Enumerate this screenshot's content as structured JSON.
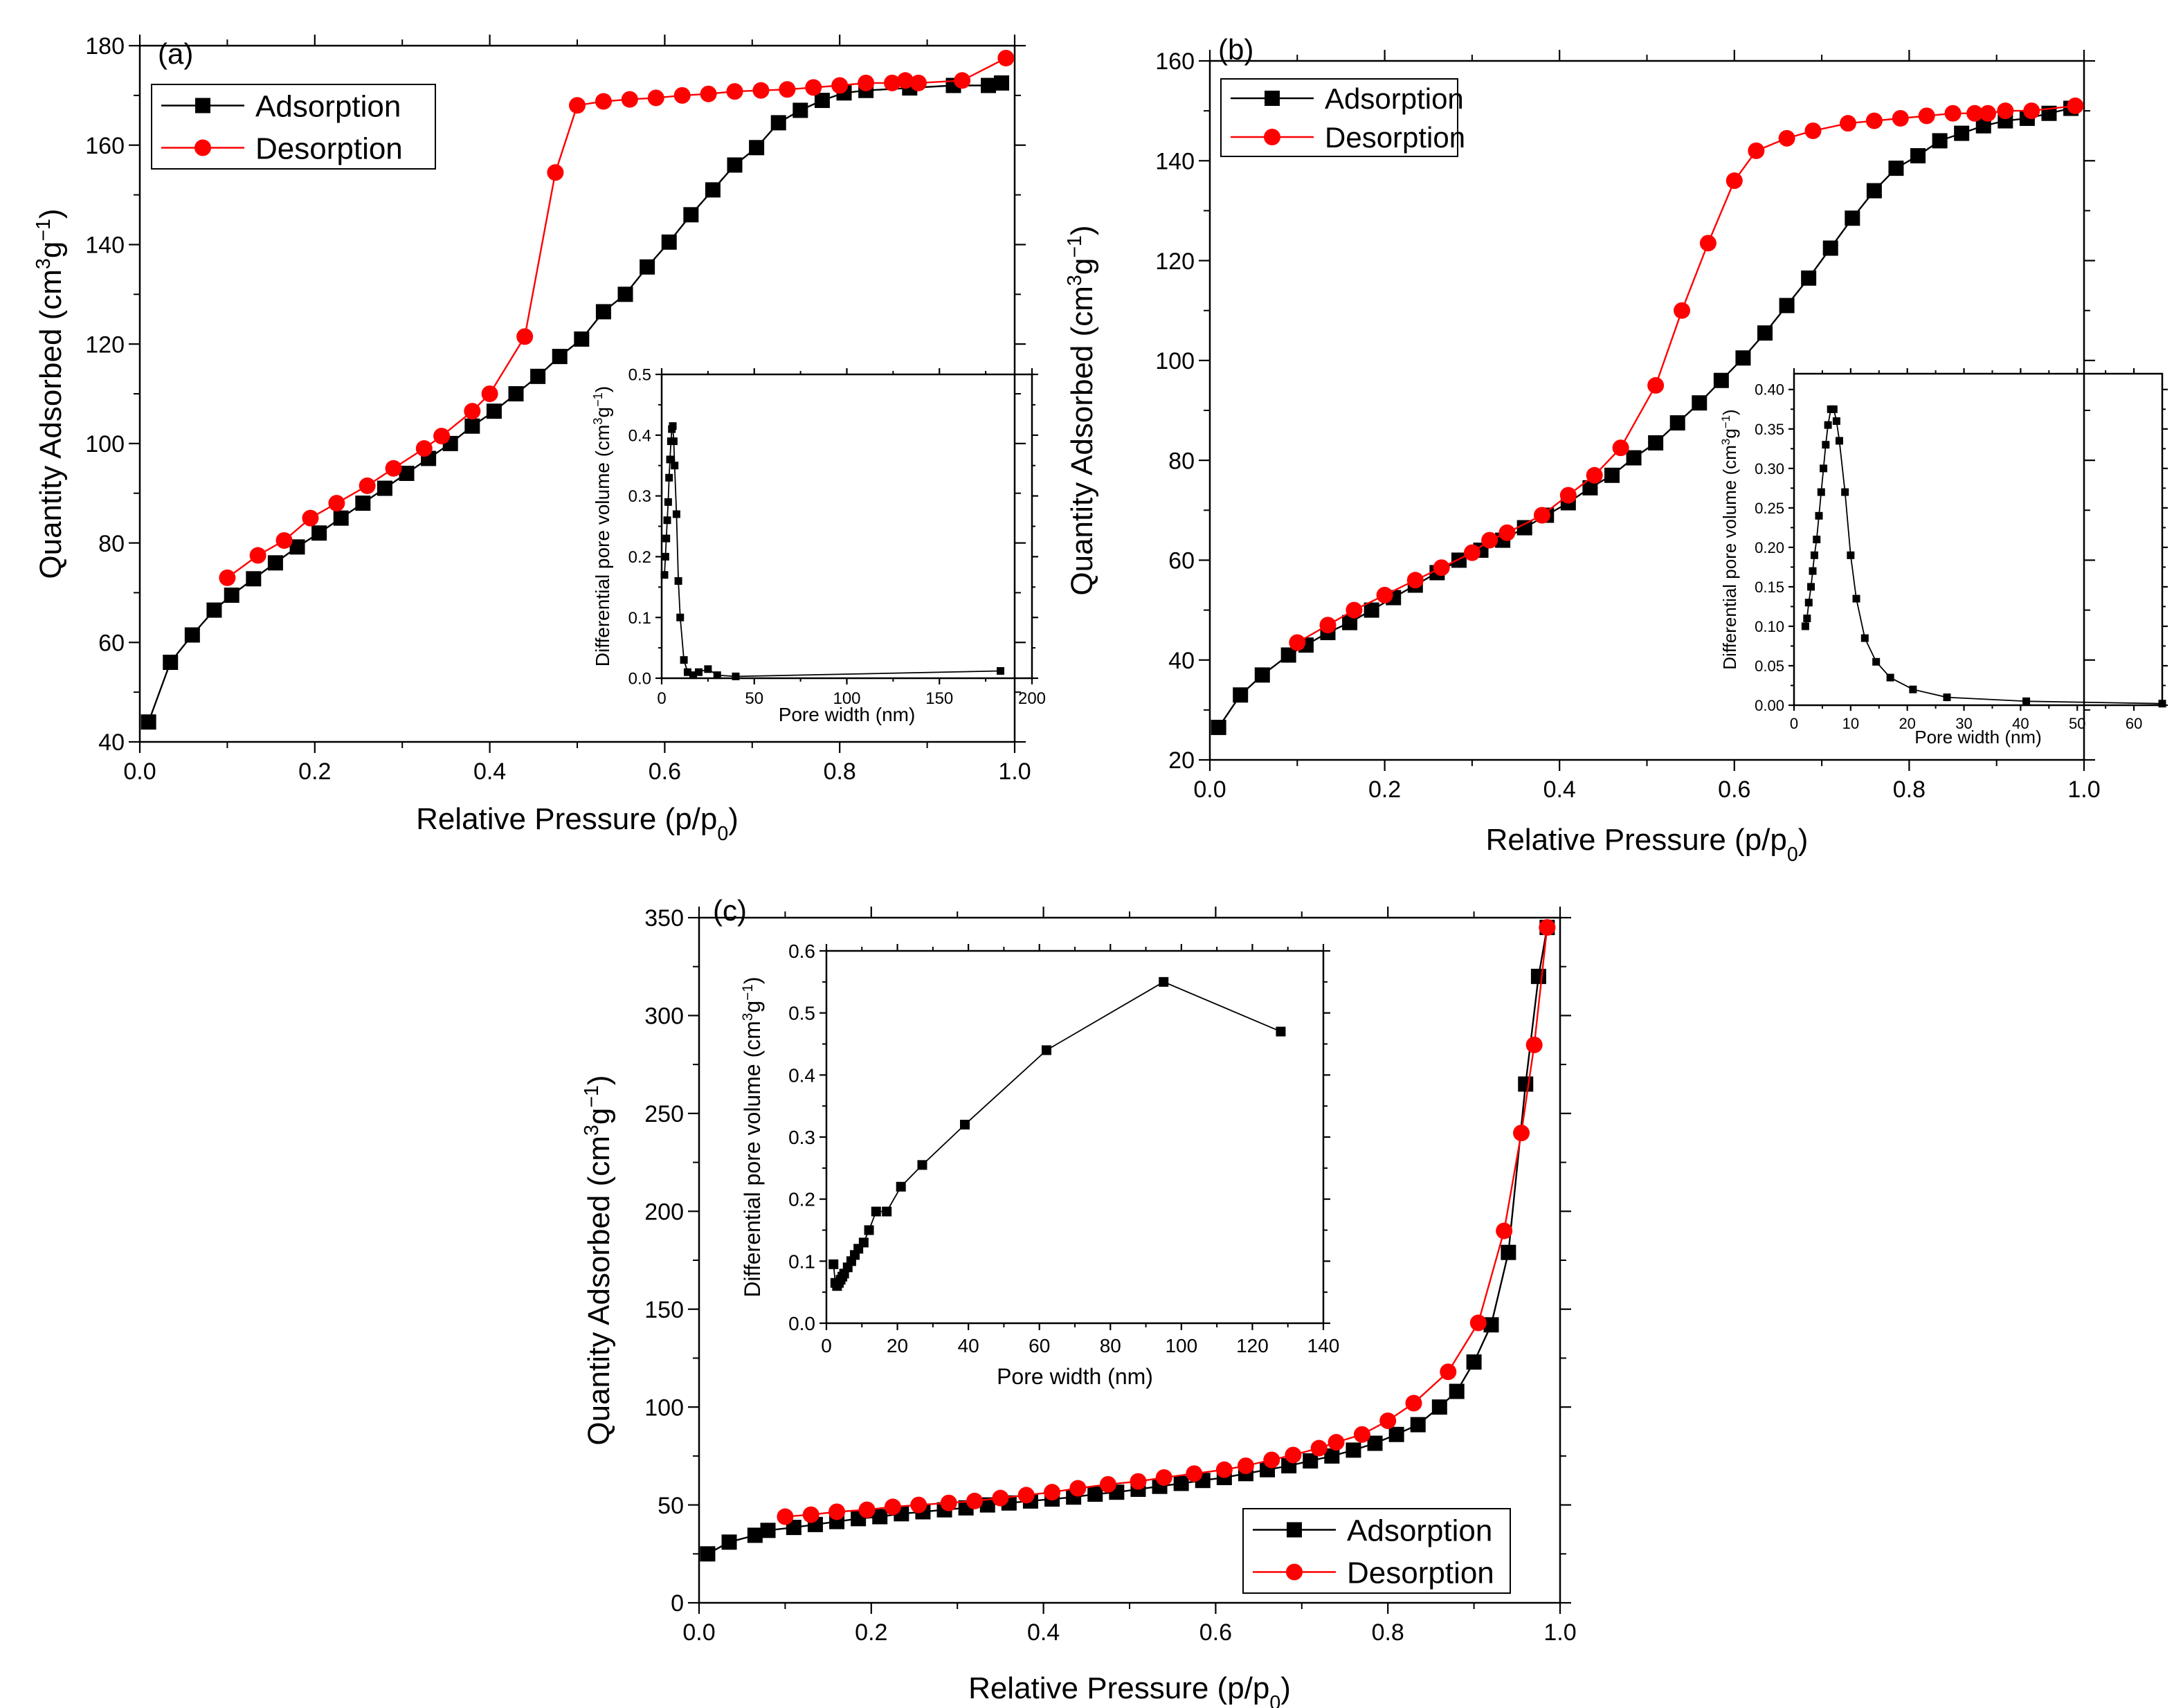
{
  "figure": {
    "panels": [
      {
        "label": "(a)"
      },
      {
        "label": "(b)"
      },
      {
        "label": "(c)"
      }
    ]
  },
  "chart_data": [
    {
      "panel": "(a)",
      "type": "line",
      "role": "main",
      "xlabel": "Relative Pressure (p/p",
      "xlabel_sub": "0",
      "xlabel_tail": ")",
      "ylabel": "Quantity Adsorbed (cm",
      "ylabel_sup1": "3",
      "ylabel_mid": "g",
      "ylabel_sup2": "−1",
      "ylabel_tail": ")",
      "xlim": [
        0,
        1.0
      ],
      "ylim": [
        40,
        180
      ],
      "xticks": [
        0.0,
        0.2,
        0.4,
        0.6,
        0.8,
        1.0
      ],
      "xtick_labels": [
        "0.0",
        "0.2",
        "0.4",
        "0.6",
        "0.8",
        "1.0"
      ],
      "yticks": [
        40,
        60,
        80,
        100,
        120,
        140,
        160,
        180
      ],
      "ytick_labels": [
        "40",
        "60",
        "80",
        "100",
        "120",
        "140",
        "160",
        "180"
      ],
      "legend": {
        "position": "top-left",
        "entries": [
          "Adsorption",
          "Desorption"
        ]
      },
      "series": [
        {
          "name": "Adsorption",
          "color": "#000000",
          "marker": "square",
          "x": [
            0.01,
            0.035,
            0.06,
            0.085,
            0.105,
            0.13,
            0.155,
            0.18,
            0.205,
            0.23,
            0.255,
            0.28,
            0.305,
            0.33,
            0.355,
            0.38,
            0.405,
            0.43,
            0.455,
            0.48,
            0.505,
            0.53,
            0.555,
            0.58,
            0.605,
            0.63,
            0.655,
            0.68,
            0.705,
            0.73,
            0.755,
            0.78,
            0.805,
            0.83,
            0.88,
            0.93,
            0.97,
            0.985
          ],
          "y": [
            44,
            56,
            61.5,
            66.5,
            69.5,
            72.8,
            76,
            79.2,
            82,
            85,
            88,
            91,
            94,
            97,
            100,
            103.5,
            106.5,
            110,
            113.5,
            117.5,
            121,
            126.5,
            130,
            135.5,
            140.5,
            146,
            151,
            156,
            159.5,
            164.5,
            167,
            169,
            170.5,
            171,
            171.5,
            172,
            172,
            172.5
          ]
        },
        {
          "name": "Desorption",
          "color": "#ff0000",
          "marker": "circle",
          "x": [
            0.1,
            0.135,
            0.165,
            0.195,
            0.225,
            0.26,
            0.29,
            0.325,
            0.345,
            0.38,
            0.4,
            0.44,
            0.475,
            0.5,
            0.53,
            0.56,
            0.59,
            0.62,
            0.65,
            0.68,
            0.71,
            0.74,
            0.77,
            0.8,
            0.83,
            0.86,
            0.875,
            0.89,
            0.94,
            0.99
          ],
          "y": [
            73,
            77.5,
            80.5,
            85,
            88,
            91.5,
            95,
            99,
            101.5,
            106.5,
            110,
            121.5,
            154.5,
            168,
            168.8,
            169.2,
            169.5,
            170,
            170.3,
            170.8,
            171,
            171.2,
            171.6,
            172,
            172.5,
            172.5,
            173,
            172.5,
            173,
            177.5
          ]
        }
      ]
    },
    {
      "panel": "(a)",
      "type": "line",
      "role": "inset",
      "xlabel": "Pore width (nm)",
      "ylabel": "Differential pore volume (cm",
      "ylabel_sup1": "3",
      "ylabel_mid": "g",
      "ylabel_sup2": "−1",
      "ylabel_tail": ")",
      "xlim": [
        0,
        200
      ],
      "ylim": [
        0,
        0.5
      ],
      "xticks": [
        0,
        50,
        100,
        150,
        200
      ],
      "xtick_labels": [
        "0",
        "50",
        "100",
        "150",
        "200"
      ],
      "yticks": [
        0,
        0.1,
        0.2,
        0.3,
        0.4,
        0.5
      ],
      "ytick_labels": [
        "0.0",
        "0.1",
        "0.2",
        "0.3",
        "0.4",
        "0.5"
      ],
      "series": [
        {
          "name": "Pore size distribution",
          "color": "#000000",
          "marker": "square",
          "x": [
            1.5,
            2,
            2.5,
            3,
            3.5,
            4,
            4.5,
            5,
            5.5,
            6,
            6.5,
            7,
            8,
            9,
            10,
            12,
            14,
            17,
            20,
            25,
            30,
            40,
            183
          ],
          "y": [
            0.17,
            0.2,
            0.23,
            0.26,
            0.29,
            0.33,
            0.36,
            0.39,
            0.41,
            0.415,
            0.39,
            0.35,
            0.27,
            0.16,
            0.1,
            0.03,
            0.01,
            0.005,
            0.01,
            0.015,
            0.005,
            0.003,
            0.012
          ]
        }
      ]
    },
    {
      "panel": "(b)",
      "type": "line",
      "role": "main",
      "xlabel": "Relative Pressure (p/p",
      "xlabel_sub": "0",
      "xlabel_tail": ")",
      "ylabel": "Quantity Adsorbed (cm",
      "ylabel_sup1": "3",
      "ylabel_mid": "g",
      "ylabel_sup2": "−1",
      "ylabel_tail": ")",
      "xlim": [
        0,
        1.0
      ],
      "ylim": [
        20,
        160
      ],
      "xticks": [
        0.0,
        0.2,
        0.4,
        0.6,
        0.8,
        1.0
      ],
      "xtick_labels": [
        "0.0",
        "0.2",
        "0.4",
        "0.6",
        "0.8",
        "1.0"
      ],
      "yticks": [
        20,
        40,
        60,
        80,
        100,
        120,
        140,
        160
      ],
      "ytick_labels": [
        "20",
        "40",
        "60",
        "80",
        "100",
        "120",
        "140",
        "160"
      ],
      "legend": {
        "position": "top-left",
        "entries": [
          "Adsorption",
          "Desorption"
        ]
      },
      "series": [
        {
          "name": "Adsorption",
          "color": "#000000",
          "marker": "square",
          "x": [
            0.01,
            0.035,
            0.06,
            0.09,
            0.11,
            0.135,
            0.16,
            0.185,
            0.21,
            0.235,
            0.26,
            0.285,
            0.31,
            0.335,
            0.36,
            0.385,
            0.41,
            0.435,
            0.46,
            0.485,
            0.51,
            0.535,
            0.56,
            0.585,
            0.61,
            0.635,
            0.66,
            0.685,
            0.71,
            0.735,
            0.76,
            0.785,
            0.81,
            0.835,
            0.86,
            0.885,
            0.91,
            0.935,
            0.96,
            0.985
          ],
          "y": [
            26.5,
            33,
            37,
            41,
            43,
            45.5,
            47.5,
            50,
            52.5,
            55,
            57.5,
            60,
            62,
            64,
            66.5,
            69,
            71.5,
            74.5,
            77,
            80.5,
            83.5,
            87.5,
            91.5,
            96,
            100.5,
            105.5,
            111,
            116.5,
            122.5,
            128.5,
            134,
            138.5,
            141,
            144,
            145.5,
            147,
            148,
            148.5,
            149.5,
            150.5
          ]
        },
        {
          "name": "Desorption",
          "color": "#ff0000",
          "marker": "circle",
          "x": [
            0.1,
            0.135,
            0.165,
            0.2,
            0.235,
            0.265,
            0.3,
            0.32,
            0.34,
            0.38,
            0.41,
            0.44,
            0.47,
            0.51,
            0.54,
            0.57,
            0.6,
            0.625,
            0.66,
            0.69,
            0.73,
            0.76,
            0.79,
            0.82,
            0.85,
            0.875,
            0.89,
            0.91,
            0.94,
            0.99
          ],
          "y": [
            43.5,
            47,
            50,
            53,
            56,
            58.5,
            61.5,
            64,
            65.5,
            69,
            73,
            77,
            82.5,
            95,
            110,
            123.5,
            136,
            142,
            144.5,
            146,
            147.5,
            148,
            148.5,
            149,
            149.5,
            149.5,
            149.5,
            150,
            150,
            151
          ]
        }
      ]
    },
    {
      "panel": "(b)",
      "type": "line",
      "role": "inset",
      "xlabel": "Pore width (nm)",
      "ylabel": "Differential pore volume (cm",
      "ylabel_sup1": "3",
      "ylabel_mid": "g",
      "ylabel_sup2": "−1",
      "ylabel_tail": ")",
      "xlim": [
        0,
        65
      ],
      "ylim": [
        0,
        0.42
      ],
      "xticks": [
        0,
        10,
        20,
        30,
        40,
        50,
        60
      ],
      "xtick_labels": [
        "0",
        "10",
        "20",
        "30",
        "40",
        "50",
        "60"
      ],
      "yticks": [
        0,
        0.05,
        0.1,
        0.15,
        0.2,
        0.25,
        0.3,
        0.35,
        0.4
      ],
      "ytick_labels": [
        "0.00",
        "0.05",
        "0.10",
        "0.15",
        "0.20",
        "0.25",
        "0.30",
        "0.35",
        "0.40"
      ],
      "series": [
        {
          "name": "Pore size distribution",
          "color": "#000000",
          "marker": "square",
          "x": [
            2,
            2.3,
            2.6,
            3,
            3.3,
            3.6,
            4,
            4.4,
            4.8,
            5.2,
            5.6,
            6,
            6.5,
            7,
            7.5,
            8,
            9,
            10,
            11,
            12.5,
            14.5,
            17,
            21,
            27,
            41,
            65
          ],
          "y": [
            0.1,
            0.11,
            0.13,
            0.15,
            0.17,
            0.19,
            0.21,
            0.24,
            0.27,
            0.3,
            0.33,
            0.355,
            0.375,
            0.375,
            0.36,
            0.335,
            0.27,
            0.19,
            0.135,
            0.085,
            0.055,
            0.035,
            0.02,
            0.01,
            0.005,
            0.002
          ]
        }
      ]
    },
    {
      "panel": "(c)",
      "type": "line",
      "role": "main",
      "xlabel": "Relative Pressure (p/p",
      "xlabel_sub": "0",
      "xlabel_tail": ")",
      "ylabel": "Quantity Adsorbed (cm",
      "ylabel_sup1": "3",
      "ylabel_mid": "g",
      "ylabel_sup2": "−1",
      "ylabel_tail": ")",
      "xlim": [
        0,
        1.0
      ],
      "ylim": [
        0,
        350
      ],
      "xticks": [
        0.0,
        0.2,
        0.4,
        0.6,
        0.8,
        1.0
      ],
      "xtick_labels": [
        "0.0",
        "0.2",
        "0.4",
        "0.6",
        "0.8",
        "1.0"
      ],
      "yticks": [
        0,
        50,
        100,
        150,
        200,
        250,
        300,
        350
      ],
      "ytick_labels": [
        "0",
        "50",
        "100",
        "150",
        "200",
        "250",
        "300",
        "350"
      ],
      "legend": {
        "position": "bottom-right",
        "entries": [
          "Adsorption",
          "Desorption"
        ]
      },
      "series": [
        {
          "name": "Adsorption",
          "color": "#000000",
          "marker": "square",
          "x": [
            0.01,
            0.035,
            0.065,
            0.08,
            0.11,
            0.135,
            0.16,
            0.185,
            0.21,
            0.235,
            0.26,
            0.285,
            0.31,
            0.335,
            0.36,
            0.385,
            0.41,
            0.435,
            0.46,
            0.485,
            0.51,
            0.535,
            0.56,
            0.585,
            0.61,
            0.635,
            0.66,
            0.685,
            0.71,
            0.735,
            0.76,
            0.785,
            0.81,
            0.835,
            0.86,
            0.88,
            0.9,
            0.92,
            0.94,
            0.96,
            0.975,
            0.985
          ],
          "y": [
            25,
            31,
            34.5,
            37,
            38.5,
            40,
            41.5,
            43,
            44,
            45.5,
            46.5,
            47.5,
            48.5,
            50,
            51,
            52,
            53,
            54,
            55.5,
            56.5,
            58,
            59.5,
            61,
            62.5,
            64,
            66,
            68,
            70,
            72.5,
            75,
            78,
            81.5,
            86,
            91,
            100,
            108,
            123,
            142,
            179,
            265,
            320,
            345
          ]
        },
        {
          "name": "Desorption",
          "color": "#ff0000",
          "marker": "circle",
          "x": [
            0.1,
            0.13,
            0.16,
            0.195,
            0.225,
            0.255,
            0.29,
            0.32,
            0.35,
            0.38,
            0.41,
            0.44,
            0.475,
            0.51,
            0.54,
            0.575,
            0.61,
            0.635,
            0.665,
            0.69,
            0.72,
            0.74,
            0.77,
            0.8,
            0.83,
            0.87,
            0.905,
            0.935,
            0.955,
            0.97,
            0.985
          ],
          "y": [
            44,
            45,
            46.5,
            47.5,
            49,
            50,
            51,
            52,
            53.5,
            55,
            56.5,
            58.5,
            60.5,
            62,
            64,
            66,
            68,
            70,
            73,
            75.5,
            79,
            82,
            86,
            93,
            102,
            118,
            143,
            190,
            240,
            285,
            345
          ]
        }
      ]
    },
    {
      "panel": "(c)",
      "type": "line",
      "role": "inset",
      "xlabel": "Pore width (nm)",
      "ylabel": "Differential pore volume (cm",
      "ylabel_sup1": "3",
      "ylabel_mid": "g",
      "ylabel_sup2": "−1",
      "ylabel_tail": ")",
      "xlim": [
        0,
        140
      ],
      "ylim": [
        0,
        0.6
      ],
      "xticks": [
        0,
        20,
        40,
        60,
        80,
        100,
        120,
        140
      ],
      "xtick_labels": [
        "0",
        "20",
        "40",
        "60",
        "80",
        "100",
        "120",
        "140"
      ],
      "yticks": [
        0,
        0.1,
        0.2,
        0.3,
        0.4,
        0.5,
        0.6
      ],
      "ytick_labels": [
        "0.0",
        "0.1",
        "0.2",
        "0.3",
        "0.4",
        "0.5",
        "0.6"
      ],
      "series": [
        {
          "name": "Pore size distribution",
          "color": "#000000",
          "marker": "square",
          "x": [
            2,
            2.5,
            3,
            3.5,
            4,
            4.5,
            5,
            6,
            7,
            8,
            9,
            10.5,
            12,
            14,
            17,
            21,
            27,
            39,
            62,
            95,
            128
          ],
          "y": [
            0.095,
            0.065,
            0.06,
            0.065,
            0.07,
            0.075,
            0.08,
            0.09,
            0.1,
            0.11,
            0.12,
            0.13,
            0.15,
            0.18,
            0.18,
            0.22,
            0.255,
            0.32,
            0.44,
            0.55,
            0.47
          ]
        }
      ]
    }
  ]
}
